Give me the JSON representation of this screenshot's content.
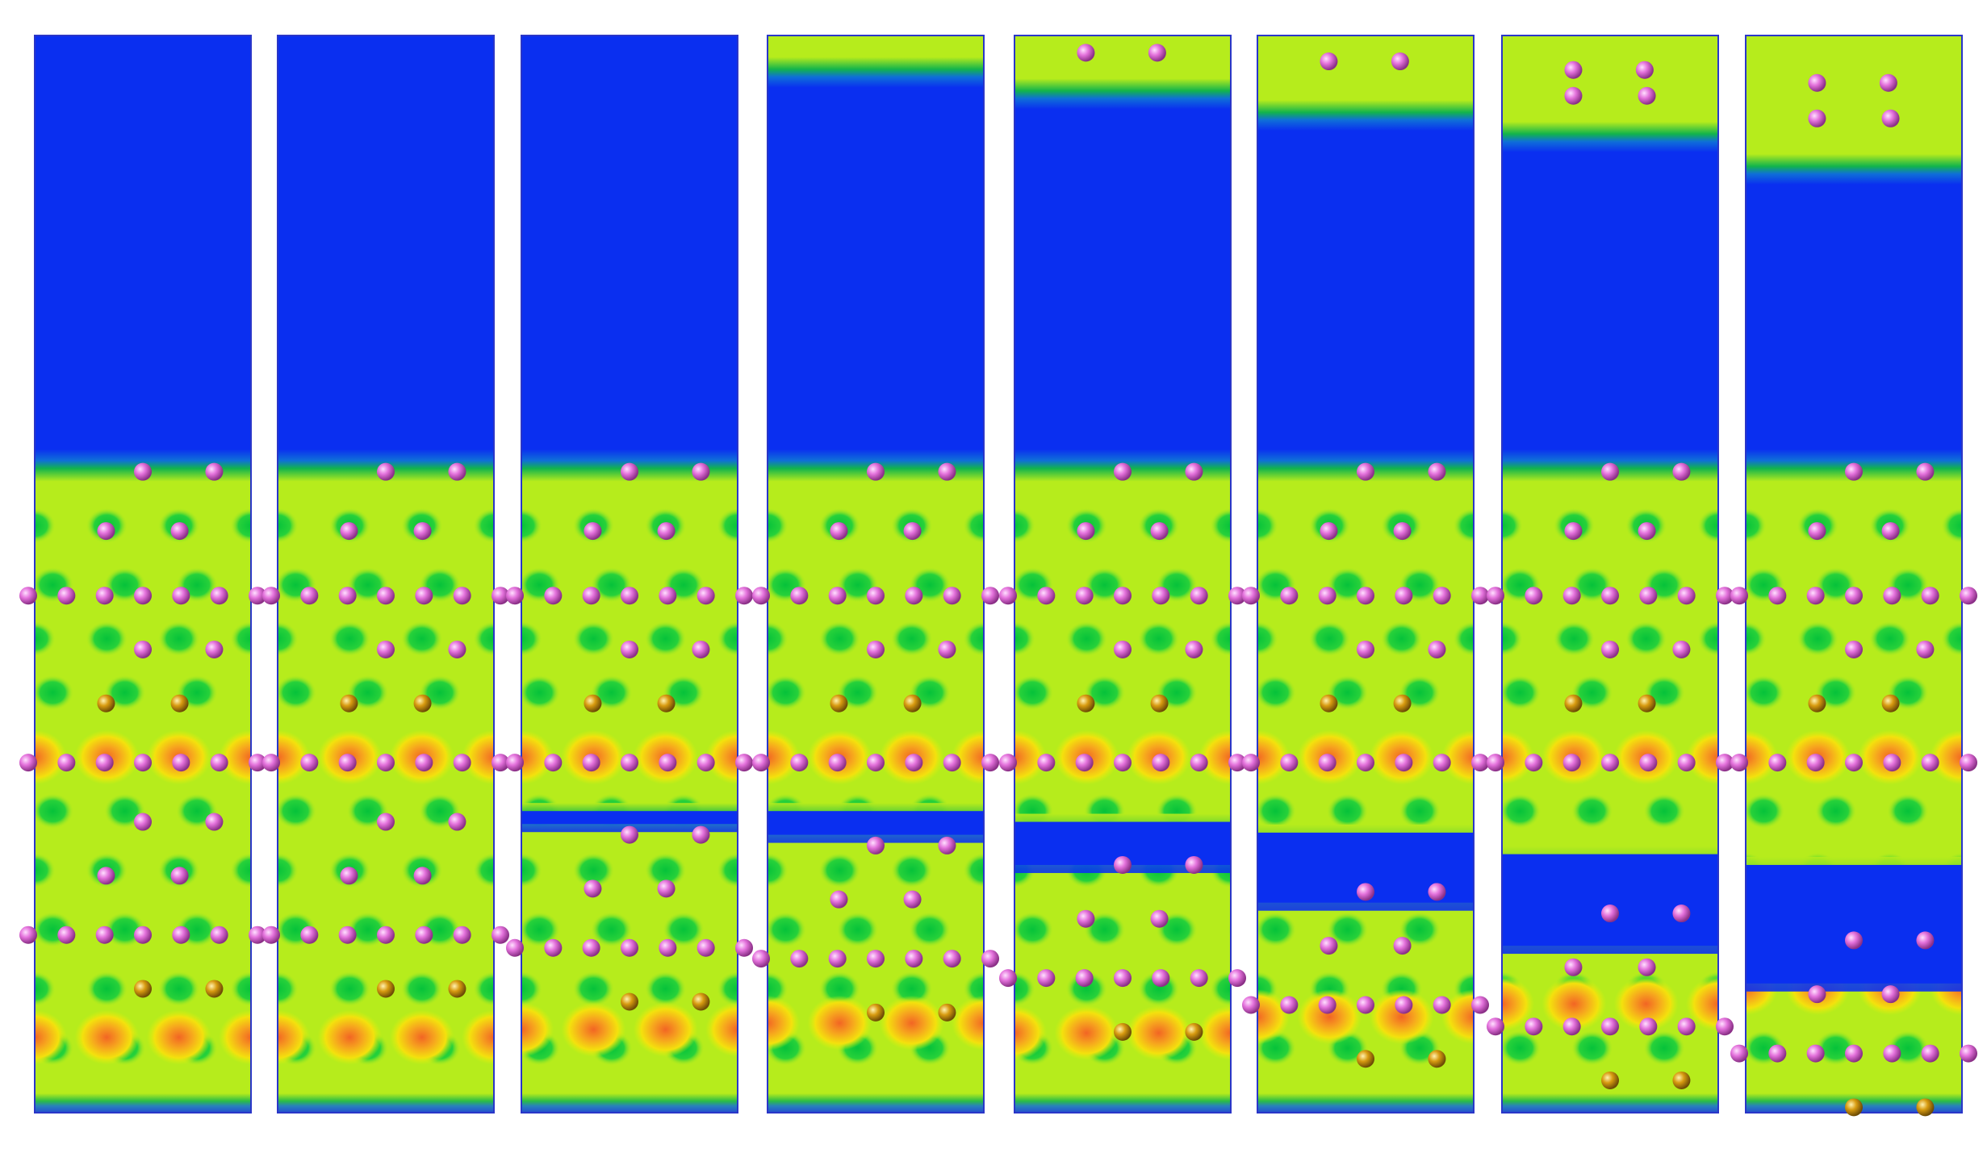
{
  "figure": {
    "description_free": true,
    "panels": [
      {
        "id": 1,
        "vacuum_top": 0.0,
        "gap": null,
        "gap_width": 0.0
      },
      {
        "id": 2,
        "vacuum_top": 0.0,
        "gap": null,
        "gap_width": 0.0
      },
      {
        "id": 3,
        "vacuum_top": 0.0,
        "gap": 0.72,
        "gap_width": 0.012
      },
      {
        "id": 4,
        "vacuum_top": 0.02,
        "gap": 0.72,
        "gap_width": 0.022
      },
      {
        "id": 5,
        "vacuum_top": 0.04,
        "gap": 0.73,
        "gap_width": 0.04
      },
      {
        "id": 6,
        "vacuum_top": 0.06,
        "gap": 0.74,
        "gap_width": 0.065
      },
      {
        "id": 7,
        "vacuum_top": 0.08,
        "gap": 0.76,
        "gap_width": 0.085
      },
      {
        "id": 8,
        "vacuum_top": 0.11,
        "gap": 0.77,
        "gap_width": 0.11
      }
    ],
    "colors": {
      "vacuum": "#0a2ff0",
      "edge": "#11b84a",
      "base": "#b6ec1c",
      "mid": "#d8f20e",
      "node": "#0ec93a",
      "hot": "#f3a21d",
      "hot_core": "#f06a22",
      "atom_pink": "#e070d8",
      "atom_gold": "#d69b11",
      "frame": "#2a36c8"
    }
  }
}
